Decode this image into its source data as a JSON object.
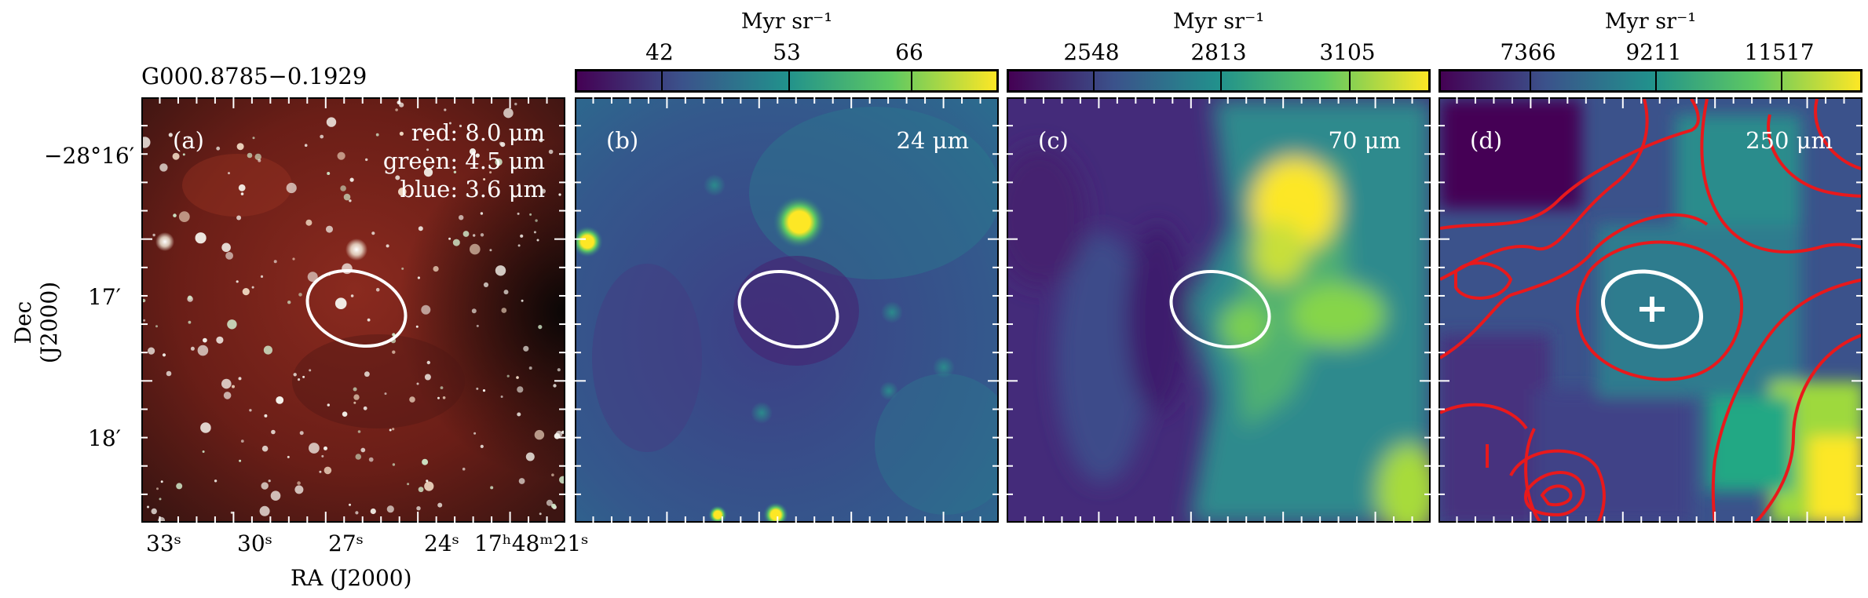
{
  "source_title": "G000.8785−0.1929",
  "axes": {
    "xlabel": "RA (J2000)",
    "ylabel": "Dec (J2000)",
    "dec_ticks": [
      "−28°16′",
      "17′",
      "18′"
    ],
    "ra_ticks": [
      "33ˢ",
      "30ˢ",
      "27ˢ",
      "24ˢ",
      "17ʰ48ᵐ21ˢ"
    ]
  },
  "panels": [
    {
      "label": "(a)",
      "legend": [
        "red: 8.0 μm",
        "green: 4.5 μm",
        "blue: 3.6 μm"
      ]
    },
    {
      "label": "(b)",
      "band": "24 μm",
      "colorbar": {
        "title": "Myr sr⁻¹",
        "ticks": [
          "42",
          "53",
          "66"
        ]
      }
    },
    {
      "label": "(c)",
      "band": "70 μm",
      "colorbar": {
        "title": "Myr sr⁻¹",
        "ticks": [
          "2548",
          "2813",
          "3105"
        ]
      }
    },
    {
      "label": "(d)",
      "band": "250 μm",
      "colorbar": {
        "title": "Myr sr⁻¹",
        "ticks": [
          "7366",
          "9211",
          "11517"
        ]
      }
    }
  ],
  "colors": {
    "ellipse": "#ffffff",
    "contour": "#e8191c",
    "viridis_low": "#440154",
    "viridis_high": "#fde725",
    "rgb_background": "#6b1d16"
  }
}
